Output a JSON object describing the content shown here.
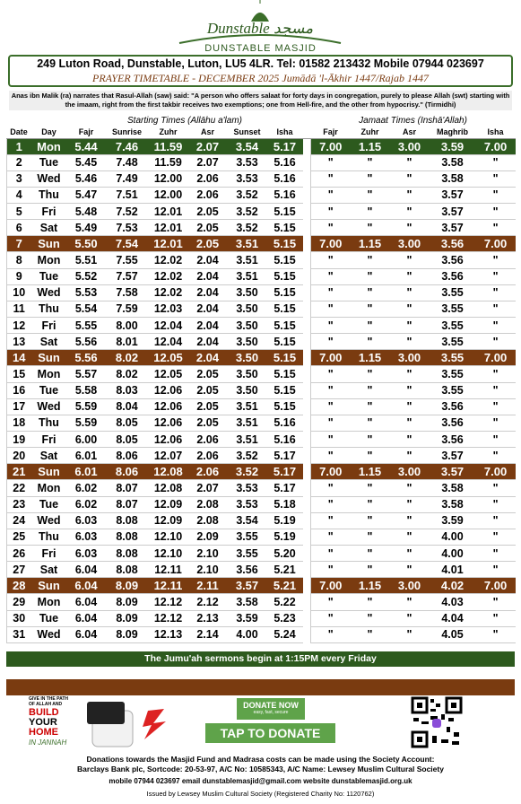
{
  "header": {
    "logo": "Dunstable مسجد",
    "name": "DUNSTABLE MASJID",
    "address": "249 Luton Road, Dunstable, Luton, LU5 4LR. Tel: 01582 213432 Mobile 07944 023697",
    "title": "PRAYER TIMETABLE - DECEMBER 2025 Jumādā 'l-Ākhir 1447/Rajab 1447"
  },
  "hadith": "Anas ibn Malik (ra) narrates that Rasul-Allah (saw) said: \"A person who offers salaat for forty days in congregation, purely to please Allah (swt) starting with the imaam, right from the first takbir receives two exemptions; one from Hell-fire, and the other from hypocrisy.\" (Tirmidhi)",
  "table": {
    "groups": [
      "Starting Times (Allāhu a'lam)",
      "Jamaat Times (Inshā'Allah)"
    ],
    "columns": [
      "Date",
      "Day",
      "Fajr",
      "Sunrise",
      "Zuhr",
      "Asr",
      "Sunset",
      "Isha",
      "Fajr",
      "Zuhr",
      "Asr",
      "Maghrib",
      "Isha"
    ],
    "rows": [
      [
        "1",
        "Mon",
        "5.44",
        "7.46",
        "11.59",
        "2.07",
        "3.54",
        "5.17",
        "7.00",
        "1.15",
        "3.00",
        "3.59",
        "7.00"
      ],
      [
        "2",
        "Tue",
        "5.45",
        "7.48",
        "11.59",
        "2.07",
        "3.53",
        "5.16",
        "\"",
        "\"",
        "\"",
        "3.58",
        "\""
      ],
      [
        "3",
        "Wed",
        "5.46",
        "7.49",
        "12.00",
        "2.06",
        "3.53",
        "5.16",
        "\"",
        "\"",
        "\"",
        "3.58",
        "\""
      ],
      [
        "4",
        "Thu",
        "5.47",
        "7.51",
        "12.00",
        "2.06",
        "3.52",
        "5.16",
        "\"",
        "\"",
        "\"",
        "3.57",
        "\""
      ],
      [
        "5",
        "Fri",
        "5.48",
        "7.52",
        "12.01",
        "2.05",
        "3.52",
        "5.15",
        "\"",
        "\"",
        "\"",
        "3.57",
        "\""
      ],
      [
        "6",
        "Sat",
        "5.49",
        "7.53",
        "12.01",
        "2.05",
        "3.52",
        "5.15",
        "\"",
        "\"",
        "\"",
        "3.57",
        "\""
      ],
      [
        "7",
        "Sun",
        "5.50",
        "7.54",
        "12.01",
        "2.05",
        "3.51",
        "5.15",
        "7.00",
        "1.15",
        "3.00",
        "3.56",
        "7.00"
      ],
      [
        "8",
        "Mon",
        "5.51",
        "7.55",
        "12.02",
        "2.04",
        "3.51",
        "5.15",
        "\"",
        "\"",
        "\"",
        "3.56",
        "\""
      ],
      [
        "9",
        "Tue",
        "5.52",
        "7.57",
        "12.02",
        "2.04",
        "3.51",
        "5.15",
        "\"",
        "\"",
        "\"",
        "3.56",
        "\""
      ],
      [
        "10",
        "Wed",
        "5.53",
        "7.58",
        "12.02",
        "2.04",
        "3.50",
        "5.15",
        "\"",
        "\"",
        "\"",
        "3.55",
        "\""
      ],
      [
        "11",
        "Thu",
        "5.54",
        "7.59",
        "12.03",
        "2.04",
        "3.50",
        "5.15",
        "\"",
        "\"",
        "\"",
        "3.55",
        "\""
      ],
      [
        "12",
        "Fri",
        "5.55",
        "8.00",
        "12.04",
        "2.04",
        "3.50",
        "5.15",
        "\"",
        "\"",
        "\"",
        "3.55",
        "\""
      ],
      [
        "13",
        "Sat",
        "5.56",
        "8.01",
        "12.04",
        "2.04",
        "3.50",
        "5.15",
        "\"",
        "\"",
        "\"",
        "3.55",
        "\""
      ],
      [
        "14",
        "Sun",
        "5.56",
        "8.02",
        "12.05",
        "2.04",
        "3.50",
        "5.15",
        "7.00",
        "1.15",
        "3.00",
        "3.55",
        "7.00"
      ],
      [
        "15",
        "Mon",
        "5.57",
        "8.02",
        "12.05",
        "2.05",
        "3.50",
        "5.15",
        "\"",
        "\"",
        "\"",
        "3.55",
        "\""
      ],
      [
        "16",
        "Tue",
        "5.58",
        "8.03",
        "12.06",
        "2.05",
        "3.50",
        "5.15",
        "\"",
        "\"",
        "\"",
        "3.55",
        "\""
      ],
      [
        "17",
        "Wed",
        "5.59",
        "8.04",
        "12.06",
        "2.05",
        "3.51",
        "5.15",
        "\"",
        "\"",
        "\"",
        "3.56",
        "\""
      ],
      [
        "18",
        "Thu",
        "5.59",
        "8.05",
        "12.06",
        "2.05",
        "3.51",
        "5.16",
        "\"",
        "\"",
        "\"",
        "3.56",
        "\""
      ],
      [
        "19",
        "Fri",
        "6.00",
        "8.05",
        "12.06",
        "2.06",
        "3.51",
        "5.16",
        "\"",
        "\"",
        "\"",
        "3.56",
        "\""
      ],
      [
        "20",
        "Sat",
        "6.01",
        "8.06",
        "12.07",
        "2.06",
        "3.52",
        "5.17",
        "\"",
        "\"",
        "\"",
        "3.57",
        "\""
      ],
      [
        "21",
        "Sun",
        "6.01",
        "8.06",
        "12.08",
        "2.06",
        "3.52",
        "5.17",
        "7.00",
        "1.15",
        "3.00",
        "3.57",
        "7.00"
      ],
      [
        "22",
        "Mon",
        "6.02",
        "8.07",
        "12.08",
        "2.07",
        "3.53",
        "5.17",
        "\"",
        "\"",
        "\"",
        "3.58",
        "\""
      ],
      [
        "23",
        "Tue",
        "6.02",
        "8.07",
        "12.09",
        "2.08",
        "3.53",
        "5.18",
        "\"",
        "\"",
        "\"",
        "3.58",
        "\""
      ],
      [
        "24",
        "Wed",
        "6.03",
        "8.08",
        "12.09",
        "2.08",
        "3.54",
        "5.19",
        "\"",
        "\"",
        "\"",
        "3.59",
        "\""
      ],
      [
        "25",
        "Thu",
        "6.03",
        "8.08",
        "12.10",
        "2.09",
        "3.55",
        "5.19",
        "\"",
        "\"",
        "\"",
        "4.00",
        "\""
      ],
      [
        "26",
        "Fri",
        "6.03",
        "8.08",
        "12.10",
        "2.10",
        "3.55",
        "5.20",
        "\"",
        "\"",
        "\"",
        "4.00",
        "\""
      ],
      [
        "27",
        "Sat",
        "6.04",
        "8.08",
        "12.11",
        "2.10",
        "3.56",
        "5.21",
        "\"",
        "\"",
        "\"",
        "4.01",
        "\""
      ],
      [
        "28",
        "Sun",
        "6.04",
        "8.09",
        "12.11",
        "2.11",
        "3.57",
        "5.21",
        "7.00",
        "1.15",
        "3.00",
        "4.02",
        "7.00"
      ],
      [
        "29",
        "Mon",
        "6.04",
        "8.09",
        "12.12",
        "2.12",
        "3.58",
        "5.22",
        "\"",
        "\"",
        "\"",
        "4.03",
        "\""
      ],
      [
        "30",
        "Tue",
        "6.04",
        "8.09",
        "12.12",
        "2.13",
        "3.59",
        "5.23",
        "\"",
        "\"",
        "\"",
        "4.04",
        "\""
      ],
      [
        "31",
        "Wed",
        "6.04",
        "8.09",
        "12.13",
        "2.14",
        "4.00",
        "5.24",
        "\"",
        "\"",
        "\"",
        "4.05",
        "\""
      ]
    ]
  },
  "jumuah": "The Jumu'ah sermons begin at 1:15PM every Friday",
  "ad": {
    "give": "GIVE IN THE PATH OF ALLAH AND",
    "build": "BUILD",
    "your": "YOUR",
    "home": "HOME",
    "jannah": "IN JANNAH",
    "donate_now": "DONATE NOW",
    "tagline": "easy, fast, secure",
    "tap": "TAP TO DONATE"
  },
  "footer": {
    "donations": "Donations towards the Masjid Fund and Madrasa costs can be made using the Society Account:",
    "bank": "Barclays Bank plc, Sortcode: 20-53-97, A/C No: 10585343, A/C Name: Lewsey Muslim Cultural Society",
    "contact": "mobile 07944 023697 email dunstablemasjid@gmail.com website dunstablemasjid.org.uk",
    "issued": "Issued by Lewsey Muslim Cultural Society (Registered Charity No: 1120762)"
  }
}
